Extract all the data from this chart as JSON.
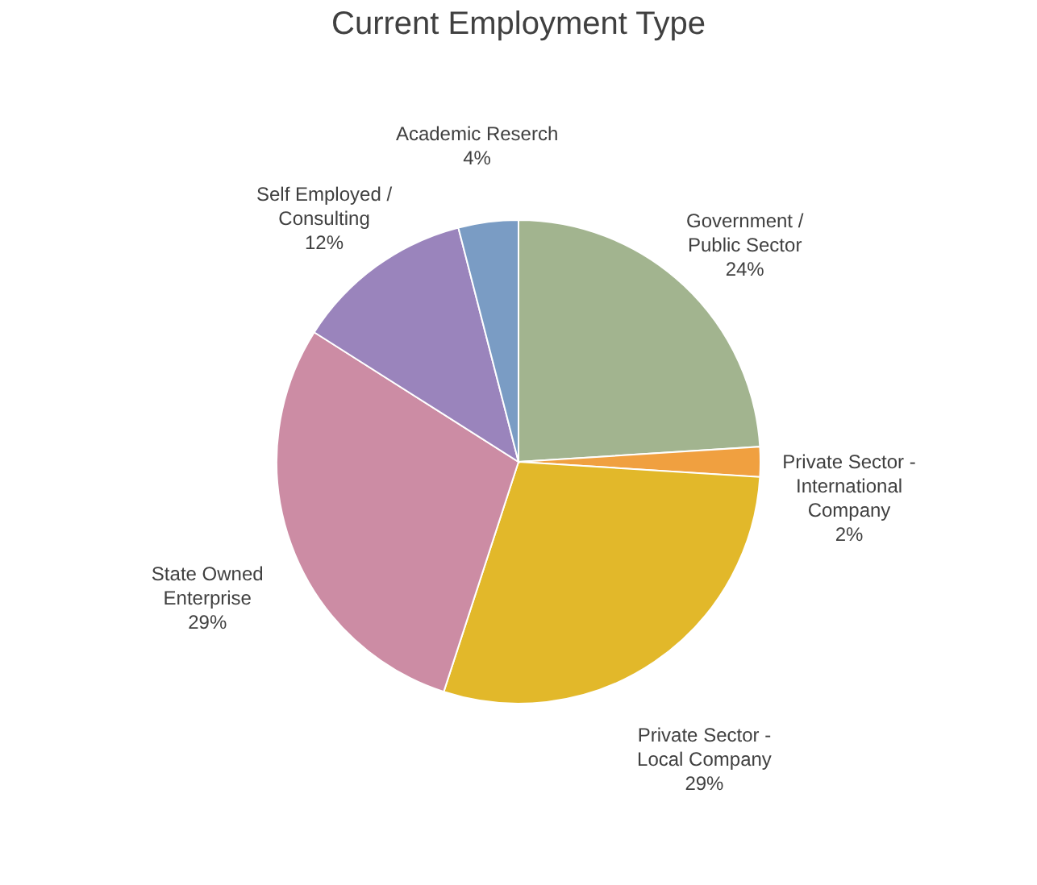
{
  "chart_data": {
    "type": "pie",
    "title": "Current Employment Type",
    "categories": [
      "Government / Public Sector",
      "Private Sector - International Company",
      "Private Sector - Local Company",
      "State Owned Enterprise",
      "Self Employed / Consulting",
      "Academic Reserch"
    ],
    "values": [
      24,
      2,
      29,
      29,
      12,
      4
    ],
    "value_labels": [
      "24%",
      "2%",
      "29%",
      "29%",
      "12%",
      "4%"
    ],
    "colors": [
      "#a2b48f",
      "#f0a040",
      "#e2b82a",
      "#cc8ca4",
      "#9a84bc",
      "#7a9cc4"
    ],
    "legend": false
  }
}
